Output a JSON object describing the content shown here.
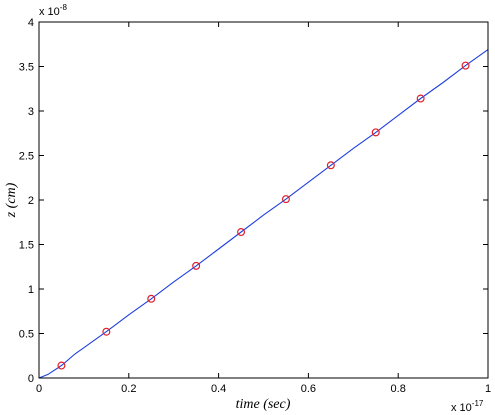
{
  "chart_data": {
    "type": "line",
    "title": "",
    "xlabel": "time (sec)",
    "ylabel": "z (cm)",
    "x_multiplier": {
      "base": "x 10",
      "exponent": "-17"
    },
    "y_multiplier": {
      "base": "x 10",
      "exponent": "-8"
    },
    "xlim": [
      0,
      1
    ],
    "ylim": [
      0,
      4
    ],
    "x_ticks": [
      {
        "value": 0,
        "label": "0"
      },
      {
        "value": 0.2,
        "label": "0.2"
      },
      {
        "value": 0.4,
        "label": "0.4"
      },
      {
        "value": 0.6,
        "label": "0.6"
      },
      {
        "value": 0.8,
        "label": "0.8"
      },
      {
        "value": 1,
        "label": "1"
      }
    ],
    "y_ticks": [
      {
        "value": 0,
        "label": "0"
      },
      {
        "value": 0.5,
        "label": "0.5"
      },
      {
        "value": 1,
        "label": "1"
      },
      {
        "value": 1.5,
        "label": "1.5"
      },
      {
        "value": 2,
        "label": "2"
      },
      {
        "value": 2.5,
        "label": "2.5"
      },
      {
        "value": 3,
        "label": "3"
      },
      {
        "value": 3.5,
        "label": "3.5"
      },
      {
        "value": 4,
        "label": "4"
      }
    ],
    "grid": false,
    "series": [
      {
        "style": "line",
        "color": "#1f3fe0",
        "x": [
          0,
          0.02,
          0.05,
          0.08,
          0.1,
          0.15,
          0.2,
          0.25,
          0.3,
          0.35,
          0.4,
          0.45,
          0.5,
          0.55,
          0.6,
          0.65,
          0.7,
          0.75,
          0.8,
          0.85,
          0.9,
          0.95,
          1.0
        ],
        "y": [
          0,
          0.04,
          0.14,
          0.27,
          0.34,
          0.52,
          0.71,
          0.89,
          1.08,
          1.26,
          1.45,
          1.64,
          1.83,
          2.01,
          2.2,
          2.39,
          2.58,
          2.76,
          2.95,
          3.14,
          3.32,
          3.51,
          3.69
        ]
      },
      {
        "style": "markers",
        "marker": "circle",
        "color": "#e0202a",
        "x": [
          0.05,
          0.15,
          0.25,
          0.35,
          0.45,
          0.55,
          0.65,
          0.75,
          0.85,
          0.95
        ],
        "y": [
          0.14,
          0.52,
          0.89,
          1.26,
          1.64,
          2.01,
          2.39,
          2.76,
          3.14,
          3.51
        ]
      }
    ]
  }
}
